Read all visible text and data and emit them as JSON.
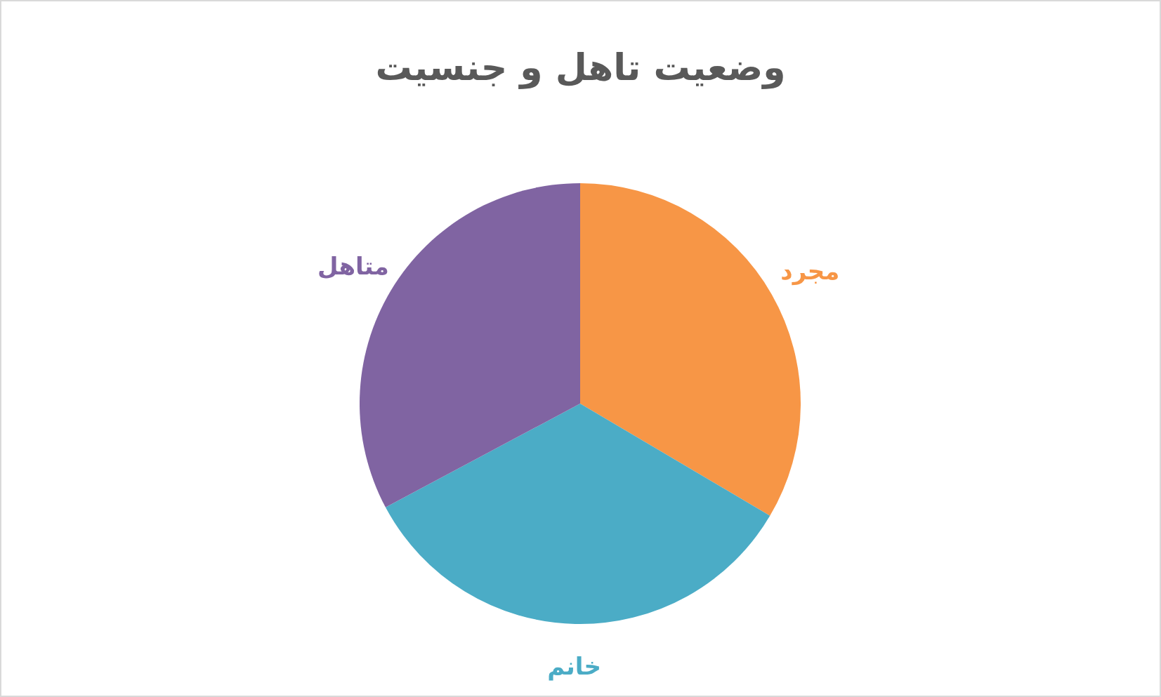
{
  "chart_data": {
    "type": "pie",
    "title": "وضعیت تاهل و جنسیت",
    "categories": [
      "مجرد",
      "خانم",
      "متاهل"
    ],
    "values": [
      33.5,
      33.7,
      32.8
    ],
    "colors": [
      "#f79646",
      "#4bacc6",
      "#8064a2"
    ]
  }
}
